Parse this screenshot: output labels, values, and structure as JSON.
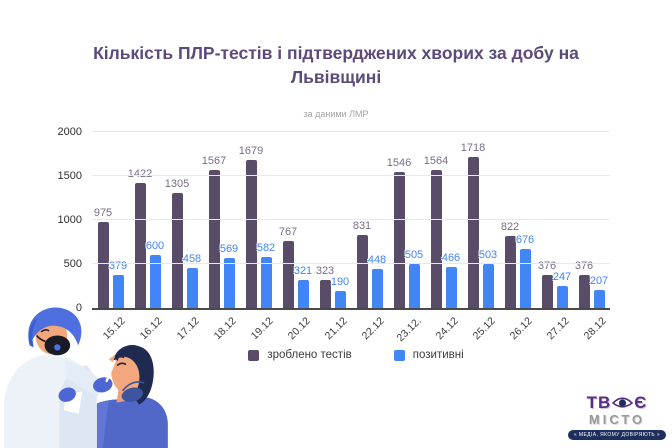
{
  "header": {
    "title": "Кількість ПЛР-тестів і підтверджених хворих за добу на Львівщині",
    "subtitle": "за даними ЛМР"
  },
  "chart_data": {
    "type": "bar",
    "categories": [
      "15.12",
      "16.12",
      "17.12",
      "18.12",
      "19.12",
      "20.12",
      "21.12",
      "22.12",
      "23.12.",
      "24.12",
      "25.12",
      "26.12",
      "27.12",
      "28.12"
    ],
    "series": [
      {
        "name": "зроблено тестів",
        "color": "#584c68",
        "label_color": "#7a6c88",
        "values": [
          975,
          1422,
          1305,
          1567,
          1679,
          767,
          323,
          831,
          1546,
          1564,
          1718,
          822,
          376,
          376
        ]
      },
      {
        "name": "позитивні",
        "color": "#4285f4",
        "label_color": "#4285f4",
        "values": [
          379,
          600,
          458,
          569,
          582,
          321,
          190,
          448,
          505,
          466,
          503,
          676,
          247,
          207
        ]
      }
    ],
    "title": "Кількість ПЛР-тестів і підтверджених хворих за добу на Львівщині",
    "xlabel": "",
    "ylabel": "",
    "ylim": [
      0,
      2000
    ],
    "yticks": [
      0,
      500,
      1000,
      1500,
      2000
    ],
    "grid": true,
    "legend_position": "bottom"
  },
  "logo": {
    "line1_prefix": "ТВ",
    "line1_suffix": "Є",
    "line2": "МІСТО",
    "tagline": "« МЕДІА, ЯКОМУ ДОВІРЯЮТЬ »"
  }
}
